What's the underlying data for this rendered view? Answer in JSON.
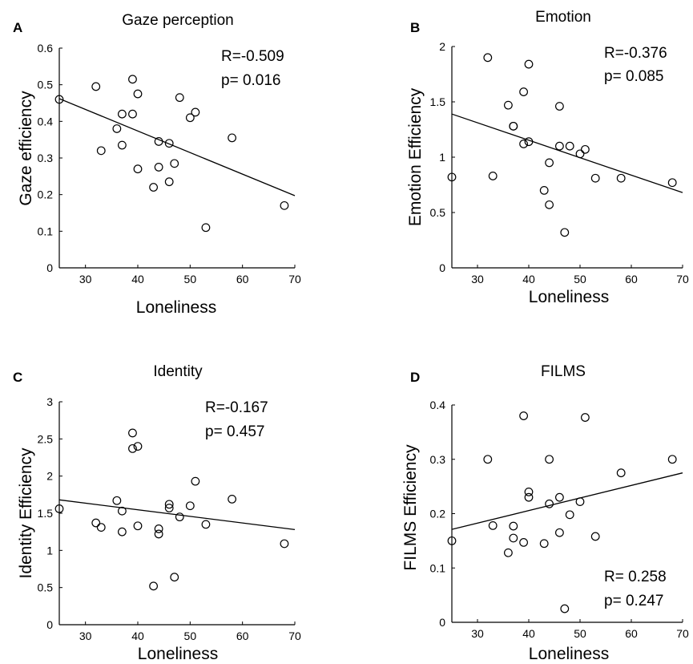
{
  "chart_data": [
    {
      "panel": "A",
      "type": "scatter",
      "title": "Gaze perception",
      "xlabel": "Loneliness",
      "ylabel": "Gaze efficiency",
      "xlim": [
        25,
        70
      ],
      "ylim": [
        0,
        0.6
      ],
      "xticks": [
        "30",
        "40",
        "50",
        "60",
        "70"
      ],
      "yticks": [
        "0",
        "0.1",
        "0.2",
        "0.3",
        "0.4",
        "0.5",
        "0.6"
      ],
      "stat_r": "R=-0.509",
      "stat_p": "p= 0.016",
      "stat_position": "top-right",
      "fit_line": [
        [
          25,
          0.462
        ],
        [
          70,
          0.197
        ]
      ],
      "points": [
        {
          "x": 25,
          "y": 0.46
        },
        {
          "x": 32,
          "y": 0.495
        },
        {
          "x": 33,
          "y": 0.32
        },
        {
          "x": 36,
          "y": 0.38
        },
        {
          "x": 37,
          "y": 0.42
        },
        {
          "x": 37,
          "y": 0.335
        },
        {
          "x": 39,
          "y": 0.515
        },
        {
          "x": 39,
          "y": 0.42
        },
        {
          "x": 40,
          "y": 0.475
        },
        {
          "x": 40,
          "y": 0.27
        },
        {
          "x": 43,
          "y": 0.22
        },
        {
          "x": 44,
          "y": 0.345
        },
        {
          "x": 44,
          "y": 0.275
        },
        {
          "x": 46,
          "y": 0.34
        },
        {
          "x": 46,
          "y": 0.235
        },
        {
          "x": 47,
          "y": 0.285
        },
        {
          "x": 48,
          "y": 0.465
        },
        {
          "x": 50,
          "y": 0.41
        },
        {
          "x": 51,
          "y": 0.425
        },
        {
          "x": 53,
          "y": 0.11
        },
        {
          "x": 58,
          "y": 0.355
        },
        {
          "x": 68,
          "y": 0.17
        }
      ]
    },
    {
      "panel": "B",
      "type": "scatter",
      "title": "Emotion",
      "xlabel": "Loneliness",
      "ylabel": "Emotion Efficiency",
      "xlim": [
        25,
        70
      ],
      "ylim": [
        0,
        2
      ],
      "xticks": [
        "30",
        "40",
        "50",
        "60",
        "70"
      ],
      "yticks": [
        "0",
        "0.5",
        "1",
        "1.5",
        "2"
      ],
      "stat_r": "R=-0.376",
      "stat_p": "p= 0.085",
      "stat_position": "top-right",
      "fit_line": [
        [
          25,
          1.39
        ],
        [
          70,
          0.68
        ]
      ],
      "points": [
        {
          "x": 25,
          "y": 0.82
        },
        {
          "x": 32,
          "y": 1.9
        },
        {
          "x": 33,
          "y": 0.83
        },
        {
          "x": 36,
          "y": 1.47
        },
        {
          "x": 37,
          "y": 1.28
        },
        {
          "x": 37,
          "y": 1.28
        },
        {
          "x": 39,
          "y": 1.59
        },
        {
          "x": 39,
          "y": 1.12
        },
        {
          "x": 40,
          "y": 1.84
        },
        {
          "x": 40,
          "y": 1.14
        },
        {
          "x": 43,
          "y": 0.7
        },
        {
          "x": 44,
          "y": 0.95
        },
        {
          "x": 44,
          "y": 0.57
        },
        {
          "x": 46,
          "y": 1.46
        },
        {
          "x": 46,
          "y": 1.1
        },
        {
          "x": 47,
          "y": 0.32
        },
        {
          "x": 48,
          "y": 1.1
        },
        {
          "x": 50,
          "y": 1.03
        },
        {
          "x": 51,
          "y": 1.07
        },
        {
          "x": 53,
          "y": 0.81
        },
        {
          "x": 58,
          "y": 0.81
        },
        {
          "x": 68,
          "y": 0.77
        }
      ]
    },
    {
      "panel": "C",
      "type": "scatter",
      "title": "Identity",
      "xlabel": "Loneliness",
      "ylabel": "Identity Efficiency",
      "xlim": [
        25,
        70
      ],
      "ylim": [
        0,
        3
      ],
      "xticks": [
        "30",
        "40",
        "50",
        "60",
        "70"
      ],
      "yticks": [
        "0",
        "0.5",
        "1",
        "1.5",
        "2",
        "2.5",
        "3"
      ],
      "stat_r": "R=-0.167",
      "stat_p": "p= 0.457",
      "stat_position": "top-right",
      "fit_line": [
        [
          25,
          1.68
        ],
        [
          70,
          1.28
        ]
      ],
      "points": [
        {
          "x": 25,
          "y": 1.56
        },
        {
          "x": 32,
          "y": 1.37
        },
        {
          "x": 33,
          "y": 1.31
        },
        {
          "x": 36,
          "y": 1.67
        },
        {
          "x": 37,
          "y": 1.53
        },
        {
          "x": 37,
          "y": 1.25
        },
        {
          "x": 39,
          "y": 2.58
        },
        {
          "x": 39,
          "y": 2.37
        },
        {
          "x": 40,
          "y": 2.4
        },
        {
          "x": 40,
          "y": 1.33
        },
        {
          "x": 43,
          "y": 0.52
        },
        {
          "x": 44,
          "y": 1.29
        },
        {
          "x": 44,
          "y": 1.22
        },
        {
          "x": 46,
          "y": 1.62
        },
        {
          "x": 46,
          "y": 1.57
        },
        {
          "x": 47,
          "y": 0.64
        },
        {
          "x": 48,
          "y": 1.45
        },
        {
          "x": 50,
          "y": 1.6
        },
        {
          "x": 51,
          "y": 1.93
        },
        {
          "x": 53,
          "y": 1.35
        },
        {
          "x": 58,
          "y": 1.69
        },
        {
          "x": 68,
          "y": 1.09
        }
      ]
    },
    {
      "panel": "D",
      "type": "scatter",
      "title": "FILMS",
      "xlabel": "Loneliness",
      "ylabel": "FILMS Efficiency",
      "xlim": [
        25,
        70
      ],
      "ylim": [
        0,
        0.4
      ],
      "xticks": [
        "30",
        "40",
        "50",
        "60",
        "70"
      ],
      "yticks": [
        "0",
        "0.1",
        "0.2",
        "0.3",
        "0.4"
      ],
      "stat_r": "R= 0.258",
      "stat_p": "p= 0.247",
      "stat_position": "bottom-right",
      "fit_line": [
        [
          25,
          0.171
        ],
        [
          70,
          0.275
        ]
      ],
      "points": [
        {
          "x": 25,
          "y": 0.15
        },
        {
          "x": 32,
          "y": 0.3
        },
        {
          "x": 33,
          "y": 0.178
        },
        {
          "x": 36,
          "y": 0.128
        },
        {
          "x": 37,
          "y": 0.177
        },
        {
          "x": 37,
          "y": 0.155
        },
        {
          "x": 39,
          "y": 0.38
        },
        {
          "x": 39,
          "y": 0.147
        },
        {
          "x": 40,
          "y": 0.24
        },
        {
          "x": 40,
          "y": 0.23
        },
        {
          "x": 43,
          "y": 0.145
        },
        {
          "x": 44,
          "y": 0.3
        },
        {
          "x": 44,
          "y": 0.218
        },
        {
          "x": 46,
          "y": 0.23
        },
        {
          "x": 46,
          "y": 0.165
        },
        {
          "x": 47,
          "y": 0.025
        },
        {
          "x": 48,
          "y": 0.198
        },
        {
          "x": 50,
          "y": 0.222
        },
        {
          "x": 51,
          "y": 0.377
        },
        {
          "x": 53,
          "y": 0.158
        },
        {
          "x": 58,
          "y": 0.275
        },
        {
          "x": 68,
          "y": 0.3
        }
      ]
    }
  ]
}
